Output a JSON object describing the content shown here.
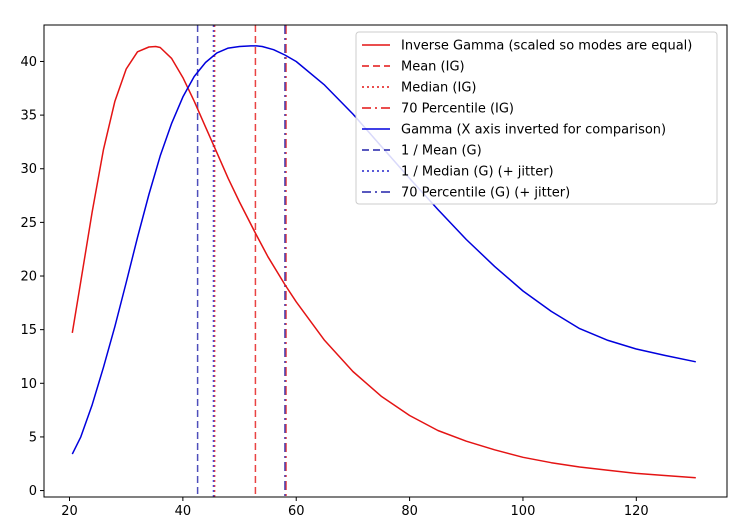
{
  "chart_data": {
    "type": "line",
    "title": "",
    "xlabel": "",
    "ylabel": "",
    "xlim": [
      15.5,
      136
    ],
    "ylim": [
      -0.6,
      43.4
    ],
    "xticks": [
      20,
      40,
      60,
      80,
      100,
      120
    ],
    "yticks": [
      0,
      5,
      10,
      15,
      20,
      25,
      30,
      35,
      40
    ],
    "grid": false,
    "legend_position": "top-right",
    "series": [
      {
        "name": "Inverse Gamma (scaled so modes are equal)",
        "color": "#e41414",
        "x": [
          20.5,
          22,
          24,
          26,
          28,
          30,
          32,
          34,
          35.2,
          36,
          38,
          40,
          42,
          44,
          46,
          48,
          50,
          52.8,
          55,
          58,
          60,
          65,
          70,
          75,
          80,
          85,
          90,
          95,
          100,
          105,
          110,
          115,
          120,
          125,
          130.5
        ],
        "y": [
          14.7,
          19.5,
          26.0,
          31.8,
          36.3,
          39.3,
          40.9,
          41.35,
          41.4,
          41.3,
          40.3,
          38.5,
          36.3,
          33.9,
          31.5,
          29.1,
          26.9,
          24.0,
          21.8,
          19.2,
          17.6,
          14.0,
          11.1,
          8.8,
          7.0,
          5.6,
          4.6,
          3.8,
          3.1,
          2.6,
          2.2,
          1.9,
          1.6,
          1.4,
          1.2
        ]
      },
      {
        "name": "Gamma (X axis inverted for comparison)",
        "color": "#0000dd",
        "x": [
          20.5,
          22,
          24,
          26,
          28,
          30,
          32,
          34,
          36,
          38,
          40,
          42,
          44,
          46,
          48,
          50,
          52,
          53,
          54,
          56,
          58,
          60,
          65,
          70,
          75,
          80,
          85,
          90,
          95,
          100,
          105,
          110,
          115,
          120,
          125,
          130.5
        ],
        "y": [
          3.4,
          5.0,
          8.0,
          11.5,
          15.3,
          19.4,
          23.6,
          27.6,
          31.2,
          34.2,
          36.7,
          38.6,
          39.9,
          40.8,
          41.25,
          41.4,
          41.45,
          41.45,
          41.4,
          41.1,
          40.6,
          40.0,
          37.8,
          35.1,
          32.1,
          29.1,
          26.2,
          23.4,
          20.9,
          18.6,
          16.7,
          15.1,
          14.0,
          13.2,
          12.6,
          12.0
        ]
      }
    ],
    "vertical_lines": [
      {
        "name": "Mean (IG)",
        "x": 52.8,
        "color": "#e41414",
        "style": "dashed"
      },
      {
        "name": "Median (IG)",
        "x": 45.6,
        "color": "#e41414",
        "style": "dotted"
      },
      {
        "name": "70 Percentile (IG)",
        "x": 58.2,
        "color": "#e41414",
        "style": "dashdot"
      },
      {
        "name": "1 / Mean (G)",
        "x": 42.6,
        "color": "#2222aa",
        "style": "dashed"
      },
      {
        "name": "1 / Median (G) (+ jitter)",
        "x": 45.4,
        "color": "#2222cc",
        "style": "dotted"
      },
      {
        "name": "70 Percentile (G) (+ jitter)",
        "x": 58.0,
        "color": "#2222aa",
        "style": "dashdot"
      }
    ],
    "legend": [
      {
        "label": "Inverse Gamma (scaled so modes are equal)",
        "color": "#e41414",
        "style": "solid"
      },
      {
        "label": "Mean (IG)",
        "color": "#e41414",
        "style": "dashed"
      },
      {
        "label": "Median (IG)",
        "color": "#e41414",
        "style": "dotted"
      },
      {
        "label": "70 Percentile (IG)",
        "color": "#e41414",
        "style": "dashdot"
      },
      {
        "label": "Gamma (X axis inverted for comparison)",
        "color": "#0000dd",
        "style": "solid"
      },
      {
        "label": "1 / Mean (G)",
        "color": "#2222aa",
        "style": "dashed"
      },
      {
        "label": "1 / Median (G) (+ jitter)",
        "color": "#2222cc",
        "style": "dotted"
      },
      {
        "label": "70 Percentile (G) (+ jitter)",
        "color": "#2222aa",
        "style": "dashdot"
      }
    ]
  }
}
